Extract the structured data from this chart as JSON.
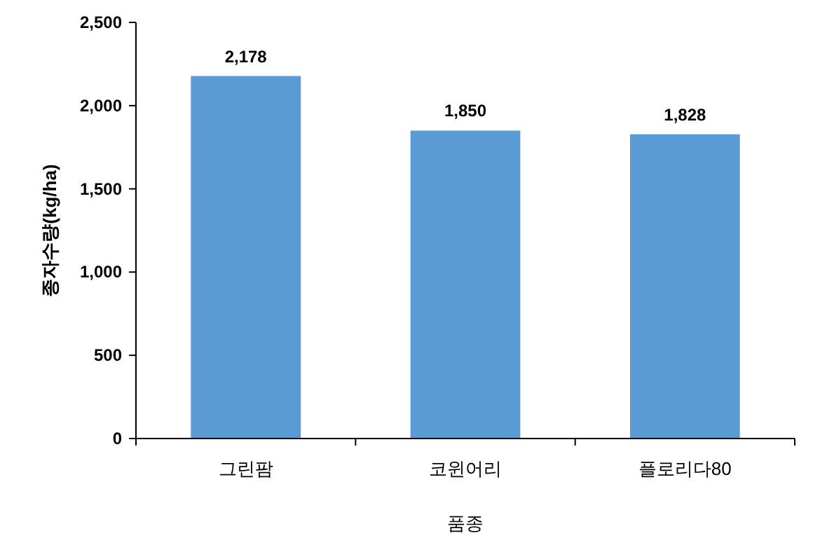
{
  "chart_data": {
    "type": "bar",
    "xlabel": "품종",
    "ylabel": "종자수량(kg/ha)",
    "categories": [
      "그린팜",
      "코윈어리",
      "플로리다80"
    ],
    "values": [
      2178,
      1850,
      1828
    ],
    "value_labels": [
      "2,178",
      "1,850",
      "1,828"
    ],
    "color": "#5b9bd5",
    "ylim": [
      0,
      2500
    ],
    "yticks": [
      0,
      {
        "value": 500,
        "label": "500"
      },
      {
        "value": 1000,
        "label": "1,000"
      },
      {
        "value": 1500,
        "label": "1,500"
      },
      {
        "value": 2000,
        "label": "2,000"
      },
      {
        "value": 2500,
        "label": "2,500"
      }
    ],
    "grid": false
  }
}
